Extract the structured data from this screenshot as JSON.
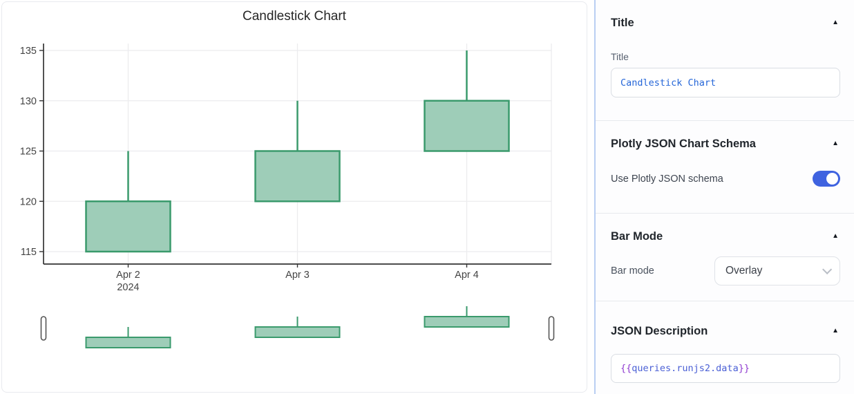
{
  "chart_data": {
    "type": "candlestick",
    "title": "Candlestick Chart",
    "categories": [
      "Apr 2",
      "Apr 3",
      "Apr 4"
    ],
    "x_sublabels": [
      "2024",
      "",
      ""
    ],
    "candles": [
      {
        "x": "Apr 2",
        "open": 115,
        "high": 125,
        "low": 115,
        "close": 120
      },
      {
        "x": "Apr 3",
        "open": 120,
        "high": 130,
        "low": 120,
        "close": 125
      },
      {
        "x": "Apr 4",
        "open": 125,
        "high": 135,
        "low": 125,
        "close": 130
      }
    ],
    "yticks": [
      115,
      120,
      125,
      130,
      135
    ],
    "ylim": [
      113.8,
      135.8
    ],
    "grid": true,
    "rangeslider": true,
    "increasing_line_color": "#3a9a6c",
    "increasing_fill_color": "#9ecdb8",
    "axis_color": "#333333",
    "grid_color": "#ececee",
    "tick_label_color": "#444444"
  },
  "panel": {
    "collapse_icon": "▲",
    "title_section": {
      "header": "Title",
      "field_label": "Title",
      "input_value": "Candlestick Chart"
    },
    "schema_section": {
      "header": "Plotly JSON Chart Schema",
      "toggle_label": "Use Plotly JSON schema",
      "toggle_on": true
    },
    "barmode_section": {
      "header": "Bar Mode",
      "field_label": "Bar mode",
      "select_value": "Overlay"
    },
    "json_section": {
      "header": "JSON Description",
      "value_open": "{{",
      "value_body": "queries.runjs2.data",
      "value_close": "}}"
    },
    "accent_blue": "#3f63e0"
  }
}
